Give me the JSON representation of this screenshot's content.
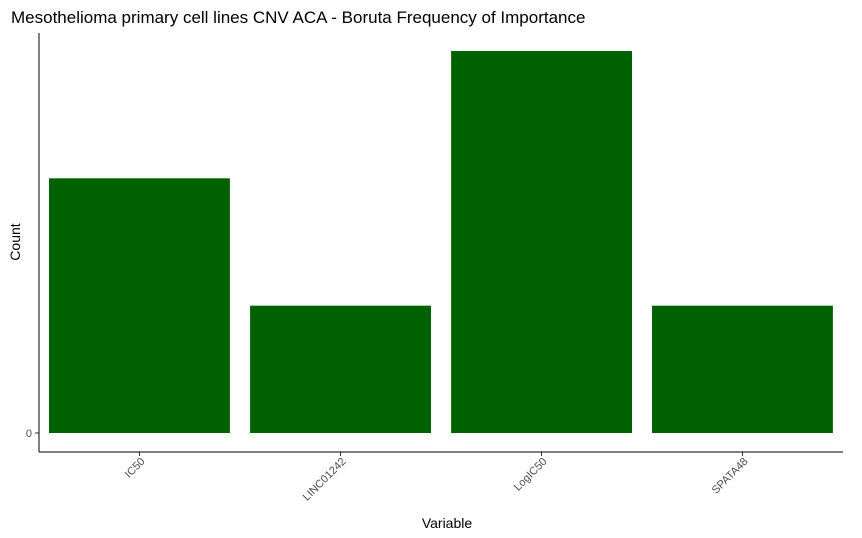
{
  "chart_data": {
    "type": "bar",
    "title": "Mesothelioma primary cell lines CNV ACA - Boruta Frequency of Importance",
    "xlabel": "Variable",
    "ylabel": "Count",
    "categories": [
      "IC50",
      "LINC01242",
      "LogIC50",
      "SPATA48"
    ],
    "values": [
      2,
      1,
      3,
      1
    ],
    "ylim": [
      0,
      3.0
    ],
    "yticks": [
      "0"
    ],
    "bar_color": "#006100",
    "grid": false,
    "legend": "none"
  }
}
